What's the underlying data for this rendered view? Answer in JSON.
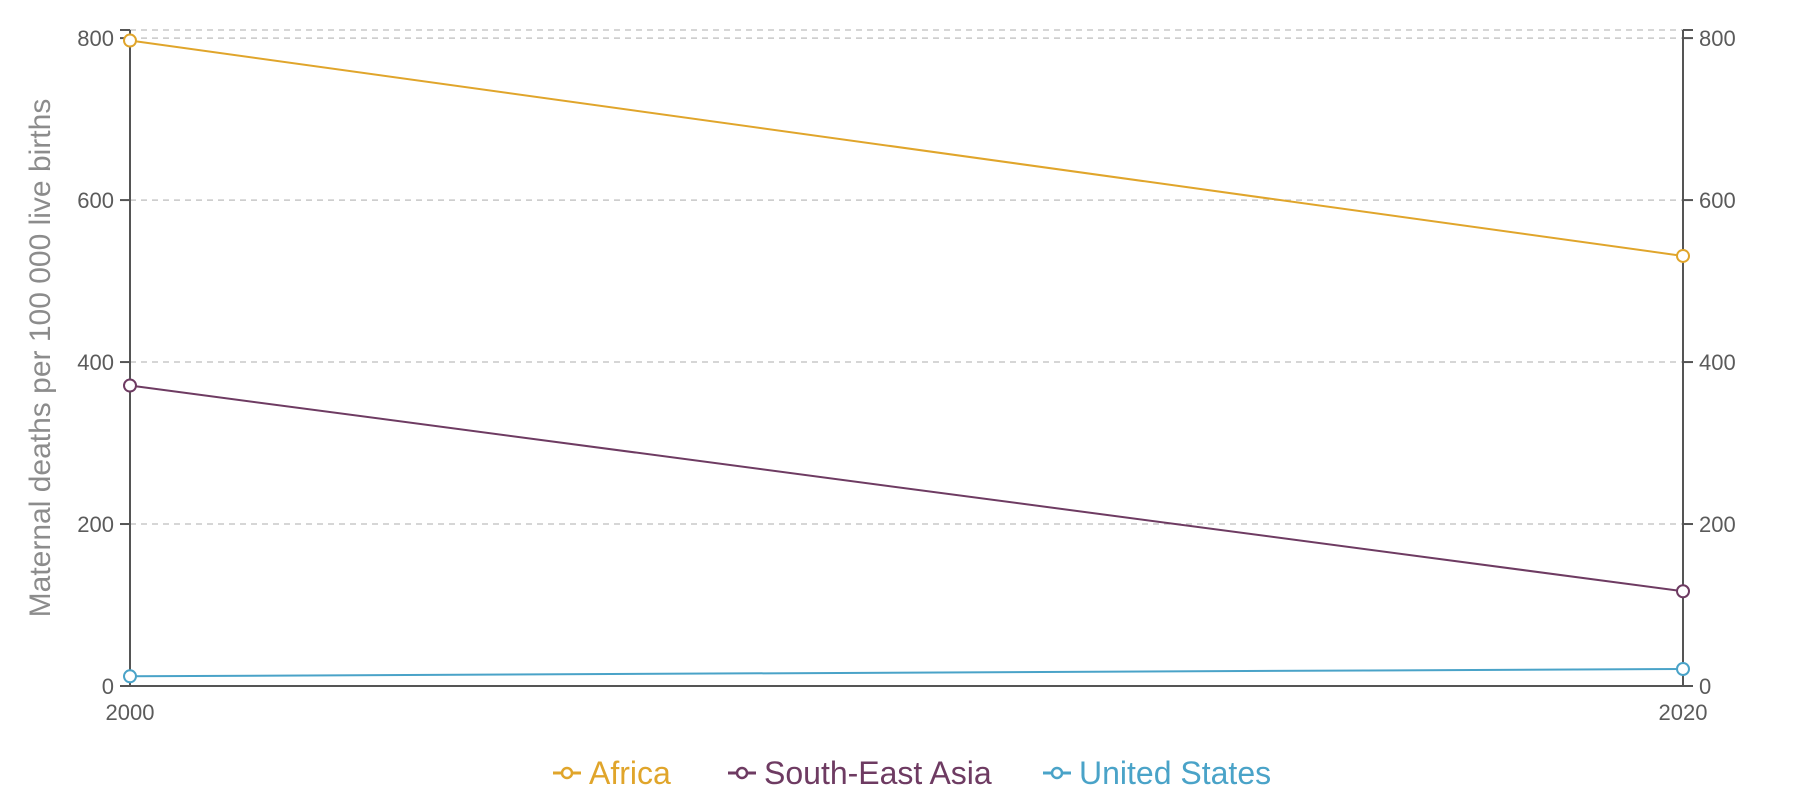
{
  "chart_data": {
    "type": "line",
    "title": "",
    "xlabel": "",
    "ylabel": "Maternal deaths per 100 000 live births",
    "x": [
      "2000",
      "2020"
    ],
    "ylim": [
      0,
      810
    ],
    "yticks": [
      "0",
      "200",
      "400",
      "600",
      "800"
    ],
    "grid": true,
    "legend": "bottom-center",
    "series": [
      {
        "name": "Africa",
        "values": [
          797,
          531
        ],
        "color": "#e0a52b"
      },
      {
        "name": "South-East Asia",
        "values": [
          371,
          117
        ],
        "color": "#6e3b62"
      },
      {
        "name": "United States",
        "values": [
          12,
          21
        ],
        "color": "#4aa3c8"
      }
    ]
  }
}
